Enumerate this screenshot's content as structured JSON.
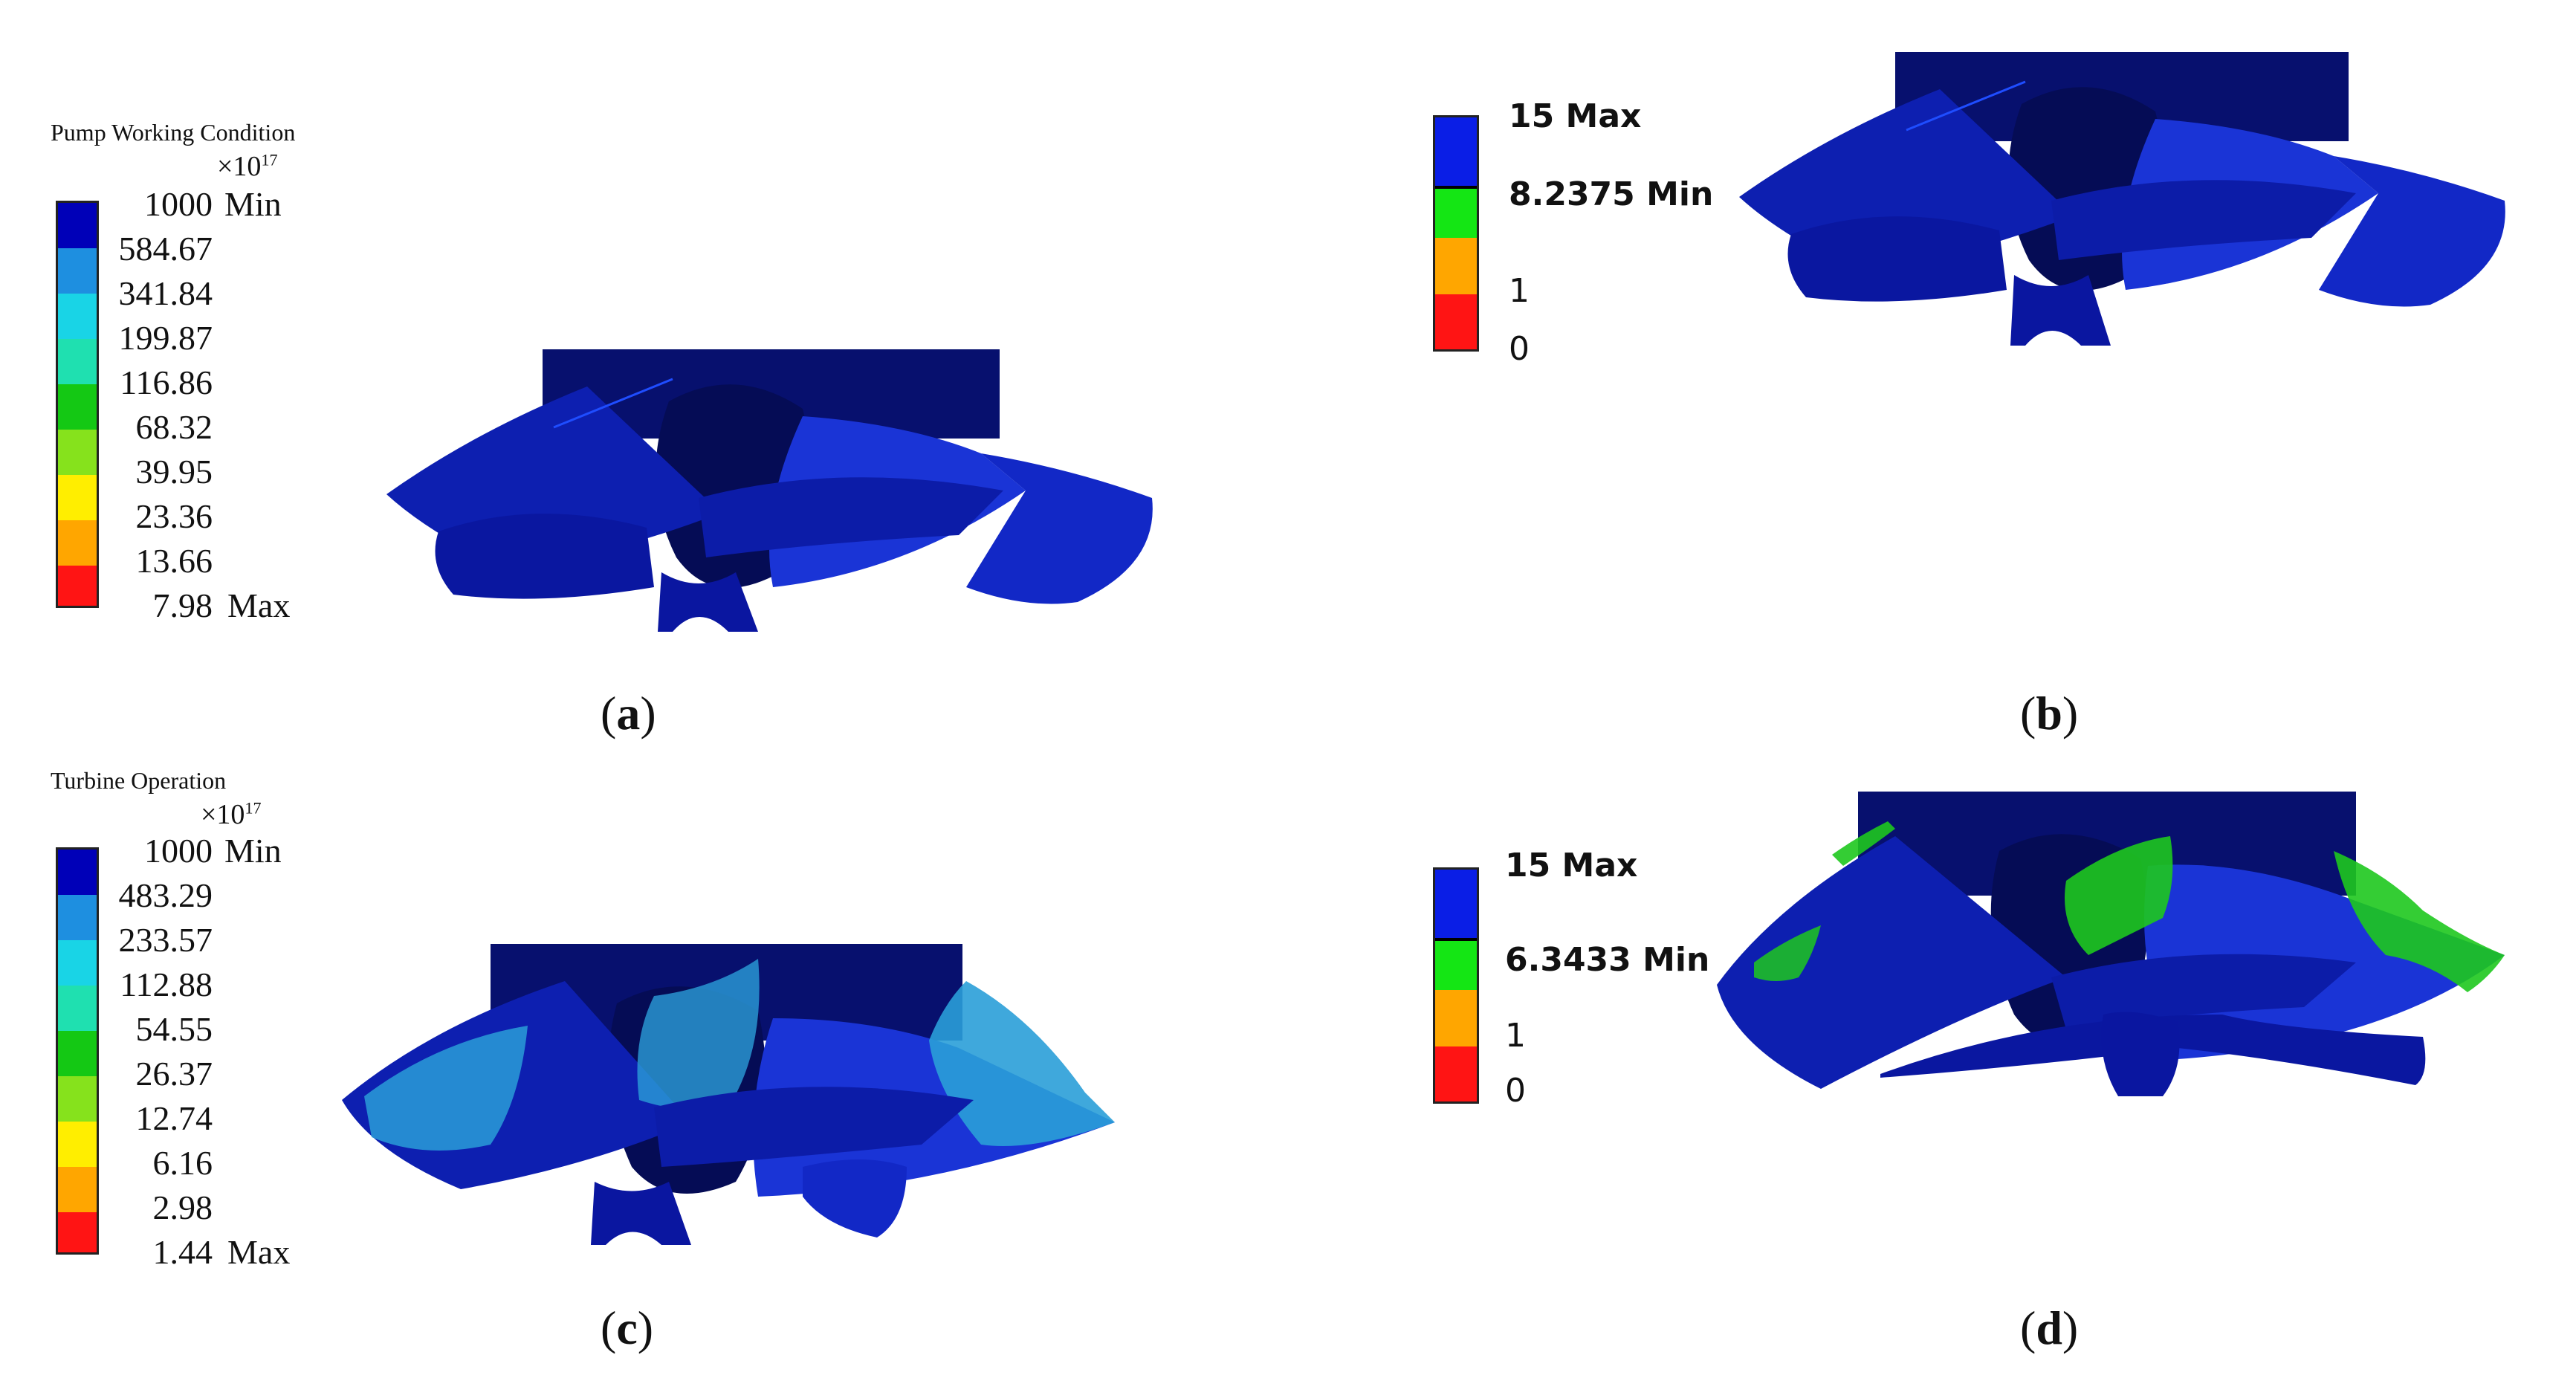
{
  "colors": {
    "c_blue_dark": "#0000b8",
    "c_blue_light": "#1e8fe0",
    "c_cyan": "#19d4e6",
    "c_teal": "#1fe0b0",
    "c_green": "#14c814",
    "c_lime": "#86e21c",
    "c_yellow": "#ffee00",
    "c_orange": "#ffa600",
    "c_red": "#ff1414",
    "b_blue": "#0a1ee6",
    "b_green": "#14e614",
    "b_orange": "#ffa600",
    "b_red": "#ff1414",
    "impeller_dark": "#07106e",
    "impeller_mid": "#0d1fb0",
    "impeller_light": "#1a34d6",
    "region_cyan": "#2a9ed8",
    "region_green": "#1ec81e"
  },
  "panel_a": {
    "title": "Pump Working Condition",
    "scale_base": "×10",
    "scale_exp": "17",
    "labels": [
      "1000",
      "584.67",
      "341.84",
      "199.87",
      "116.86",
      "68.32",
      "39.95",
      "23.36",
      "13.66",
      "7.98"
    ],
    "min_tag": "Min",
    "max_tag": "Max",
    "caption_open": "(",
    "caption_letter": "a",
    "caption_close": ")"
  },
  "panel_b": {
    "labels": [
      "15 Max",
      "8.2375 Min",
      "1",
      "0"
    ],
    "caption_open": "(",
    "caption_letter": "b",
    "caption_close": ")"
  },
  "panel_c": {
    "title": "Turbine Operation",
    "scale_base": "×10",
    "scale_exp": "17",
    "labels": [
      "1000",
      "483.29",
      "233.57",
      "112.88",
      "54.55",
      "26.37",
      "12.74",
      "6.16",
      "2.98",
      "1.44"
    ],
    "min_tag": "Min",
    "max_tag": "Max",
    "caption_open": "(",
    "caption_letter": "c",
    "caption_close": ")"
  },
  "panel_d": {
    "labels": [
      "15 Max",
      "6.3433 Min",
      "1",
      "0"
    ],
    "caption_open": "(",
    "caption_letter": "d",
    "caption_close": ")"
  }
}
